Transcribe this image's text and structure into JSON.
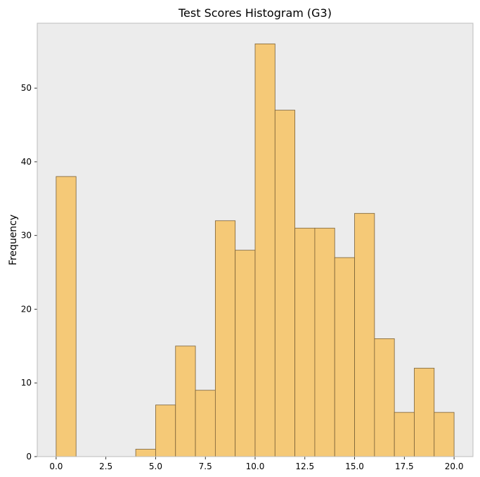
{
  "chart_data": {
    "type": "bar",
    "title": "Test Scores Histogram (G3)",
    "xlabel": "",
    "ylabel": "Frequency",
    "bin_edges": [
      0,
      1,
      2,
      3,
      4,
      5,
      6,
      7,
      8,
      9,
      10,
      11,
      12,
      13,
      14,
      15,
      16,
      17,
      18,
      19,
      20
    ],
    "counts": [
      38,
      0,
      0,
      0,
      1,
      7,
      15,
      9,
      32,
      28,
      56,
      47,
      31,
      31,
      27,
      33,
      16,
      6,
      12,
      6
    ],
    "xlim": [
      -0.95,
      20.95
    ],
    "ylim": [
      0,
      58.8
    ],
    "xticks": [
      0.0,
      2.5,
      5.0,
      7.5,
      10.0,
      12.5,
      15.0,
      17.5,
      20.0
    ],
    "xtick_labels": [
      "0.0",
      "2.5",
      "5.0",
      "7.5",
      "10.0",
      "12.5",
      "15.0",
      "17.5",
      "20.0"
    ],
    "yticks": [
      0,
      10,
      20,
      30,
      40,
      50
    ],
    "ytick_labels": [
      "0",
      "10",
      "20",
      "30",
      "40",
      "50"
    ],
    "grid": false,
    "colors": {
      "bar_fill": "#f5c977",
      "bar_edge": "#7a6036",
      "plot_background": "#ececec",
      "axes_edge": "#bdbdbd"
    }
  }
}
